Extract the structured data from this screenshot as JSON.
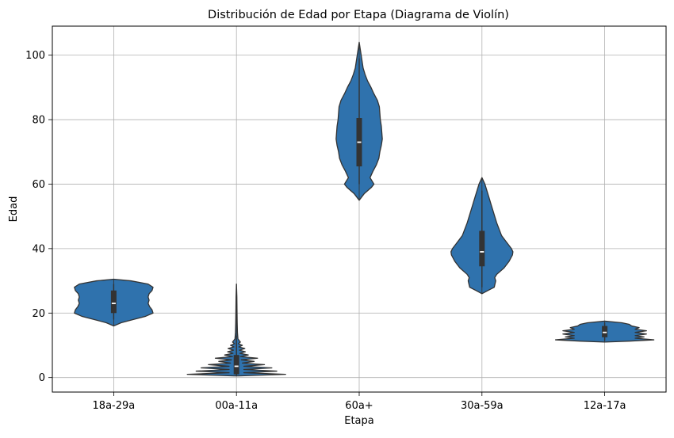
{
  "chart_data": {
    "type": "violin",
    "title": "Distribución de Edad por Etapa (Diagrama de Violín)",
    "xlabel": "Etapa",
    "ylabel": "Edad",
    "ylim": [
      -4.5,
      109
    ],
    "yticks": [
      0,
      20,
      40,
      60,
      80,
      100
    ],
    "grid": true,
    "fill_color": "#2f72ad",
    "edge_color": "#333333",
    "categories": [
      "18a-29a",
      "00a-11a",
      "60a+",
      "30a-59a",
      "12a-17a"
    ],
    "series": [
      {
        "category": "18a-29a",
        "min": 16,
        "max": 30.5,
        "q1": 20,
        "median": 23,
        "q3": 27,
        "whisker_low": 18,
        "whisker_high": 29,
        "profile": [
          [
            16,
            0.0
          ],
          [
            17,
            0.15
          ],
          [
            18,
            0.4
          ],
          [
            19,
            0.65
          ],
          [
            20,
            0.8
          ],
          [
            21,
            0.78
          ],
          [
            22,
            0.73
          ],
          [
            23,
            0.7
          ],
          [
            24,
            0.72
          ],
          [
            25,
            0.7
          ],
          [
            26,
            0.72
          ],
          [
            27,
            0.78
          ],
          [
            28,
            0.8
          ],
          [
            29,
            0.7
          ],
          [
            30,
            0.35
          ],
          [
            30.5,
            0.0
          ]
        ]
      },
      {
        "category": "00a-11a",
        "min": 0.5,
        "max": 29,
        "q1": 1,
        "median": 3.5,
        "q3": 7,
        "whisker_low": 0.5,
        "whisker_high": 13,
        "profile": [
          [
            0.5,
            0.05
          ],
          [
            1,
            1.0
          ],
          [
            1.5,
            0.15
          ],
          [
            2,
            0.82
          ],
          [
            2.5,
            0.15
          ],
          [
            3,
            0.72
          ],
          [
            3.5,
            0.15
          ],
          [
            4,
            0.57
          ],
          [
            4.5,
            0.12
          ],
          [
            5,
            0.36
          ],
          [
            5.5,
            0.1
          ],
          [
            6,
            0.43
          ],
          [
            6.5,
            0.08
          ],
          [
            7,
            0.24
          ],
          [
            7.5,
            0.07
          ],
          [
            8,
            0.18
          ],
          [
            8.5,
            0.06
          ],
          [
            9,
            0.17
          ],
          [
            9.5,
            0.05
          ],
          [
            10,
            0.12
          ],
          [
            10.5,
            0.04
          ],
          [
            11,
            0.08
          ],
          [
            12,
            0.03
          ],
          [
            14,
            0.02
          ],
          [
            17,
            0.015
          ],
          [
            20,
            0.012
          ],
          [
            25,
            0.008
          ],
          [
            29,
            0.0
          ]
        ]
      },
      {
        "category": "60a+",
        "min": 55,
        "max": 104,
        "q1": 65.5,
        "median": 73,
        "q3": 80.5,
        "whisker_low": 60,
        "whisker_high": 99,
        "profile": [
          [
            55,
            0.0
          ],
          [
            57,
            0.1
          ],
          [
            59,
            0.25
          ],
          [
            60,
            0.3
          ],
          [
            62,
            0.22
          ],
          [
            64,
            0.28
          ],
          [
            66,
            0.35
          ],
          [
            68,
            0.4
          ],
          [
            70,
            0.42
          ],
          [
            72,
            0.45
          ],
          [
            74,
            0.47
          ],
          [
            76,
            0.46
          ],
          [
            78,
            0.45
          ],
          [
            80,
            0.43
          ],
          [
            82,
            0.42
          ],
          [
            84,
            0.41
          ],
          [
            86,
            0.37
          ],
          [
            88,
            0.3
          ],
          [
            90,
            0.24
          ],
          [
            92,
            0.17
          ],
          [
            94,
            0.12
          ],
          [
            96,
            0.08
          ],
          [
            98,
            0.06
          ],
          [
            100,
            0.04
          ],
          [
            102,
            0.02
          ],
          [
            104,
            0.0
          ]
        ]
      },
      {
        "category": "30a-59a",
        "min": 26,
        "max": 62,
        "q1": 34.5,
        "median": 39,
        "q3": 45.5,
        "whisker_low": 28,
        "whisker_high": 58,
        "profile": [
          [
            26,
            0.0
          ],
          [
            27,
            0.12
          ],
          [
            28,
            0.25
          ],
          [
            30,
            0.28
          ],
          [
            31,
            0.26
          ],
          [
            32,
            0.3
          ],
          [
            34,
            0.45
          ],
          [
            36,
            0.55
          ],
          [
            38,
            0.62
          ],
          [
            39,
            0.63
          ],
          [
            40,
            0.6
          ],
          [
            42,
            0.5
          ],
          [
            44,
            0.4
          ],
          [
            46,
            0.35
          ],
          [
            48,
            0.3
          ],
          [
            50,
            0.26
          ],
          [
            52,
            0.22
          ],
          [
            54,
            0.18
          ],
          [
            56,
            0.14
          ],
          [
            58,
            0.1
          ],
          [
            60,
            0.06
          ],
          [
            62,
            0.0
          ]
        ]
      },
      {
        "category": "12a-17a",
        "min": 11,
        "max": 17.5,
        "q1": 12.5,
        "median": 14,
        "q3": 16,
        "whisker_low": 11.5,
        "whisker_high": 17,
        "profile": [
          [
            11,
            0.0
          ],
          [
            11.3,
            0.5
          ],
          [
            11.7,
            1.0
          ],
          [
            12.2,
            0.62
          ],
          [
            12.6,
            0.8
          ],
          [
            13.0,
            0.62
          ],
          [
            13.5,
            0.85
          ],
          [
            14.0,
            0.62
          ],
          [
            14.5,
            0.85
          ],
          [
            15.0,
            0.62
          ],
          [
            15.5,
            0.7
          ],
          [
            16.0,
            0.55
          ],
          [
            16.5,
            0.5
          ],
          [
            17.0,
            0.35
          ],
          [
            17.5,
            0.0
          ]
        ]
      }
    ]
  }
}
